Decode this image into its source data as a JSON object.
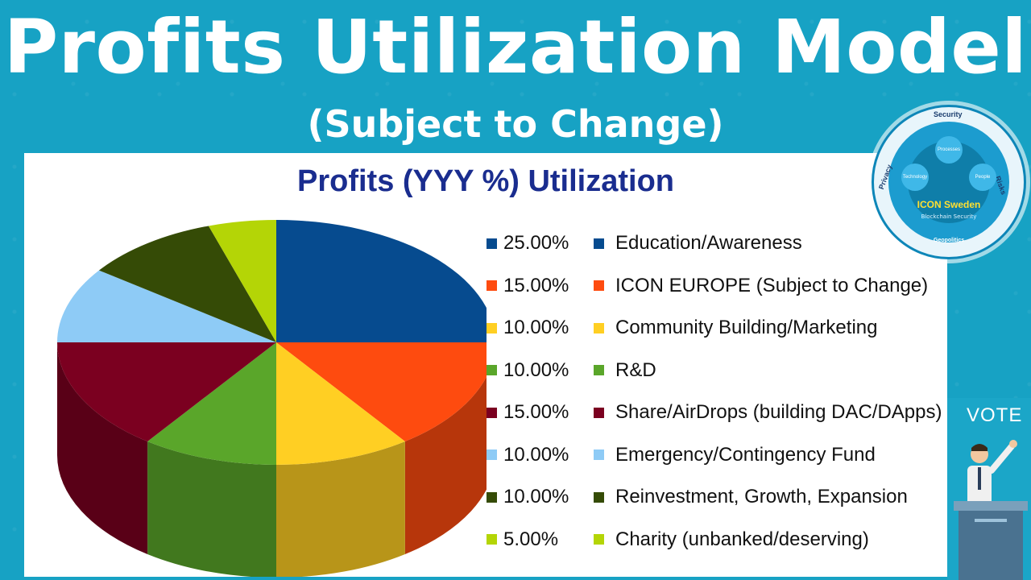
{
  "header": {
    "title": "Profits Utilization Model",
    "subtitle": "(Subject to Change)"
  },
  "badge": {
    "name": "ICON Sweden",
    "tagline": "Blockchain Security",
    "top_word": "Security",
    "left_word": "Privacy",
    "right_word": "Risks",
    "bottom_word": "Geopolitics",
    "nodes": [
      "Processes",
      "Technology",
      "People"
    ]
  },
  "vote_label": "VOTE",
  "chart_data": {
    "type": "pie",
    "title": "Profits (YYY %) Utilization",
    "legend_position": "right",
    "series": [
      {
        "name": "Education/Awareness",
        "label": "25.00%",
        "value": 25,
        "color": "#064b8f"
      },
      {
        "name": "ICON EUROPE (Subject to Change)",
        "label": "15.00%",
        "value": 15,
        "color": "#fe4b0f"
      },
      {
        "name": "Community Building/Marketing",
        "label": "10.00%",
        "value": 10,
        "color": "#ffcf23"
      },
      {
        "name": "R&D",
        "label": "10.00%",
        "value": 10,
        "color": "#5aa62a"
      },
      {
        "name": "Share/AirDrops (building DAC/DApps)",
        "label": "15.00%",
        "value": 15,
        "color": "#7b0020"
      },
      {
        "name": "Emergency/Contingency Fund",
        "label": "10.00%",
        "value": 10,
        "color": "#8ecbf6"
      },
      {
        "name": "Reinvestment, Growth, Expansion",
        "label": "10.00%",
        "value": 10,
        "color": "#354b06"
      },
      {
        "name": "Charity (unbanked/deserving)",
        "label": "5.00%",
        "value": 5,
        "color": "#b4d506"
      }
    ]
  }
}
